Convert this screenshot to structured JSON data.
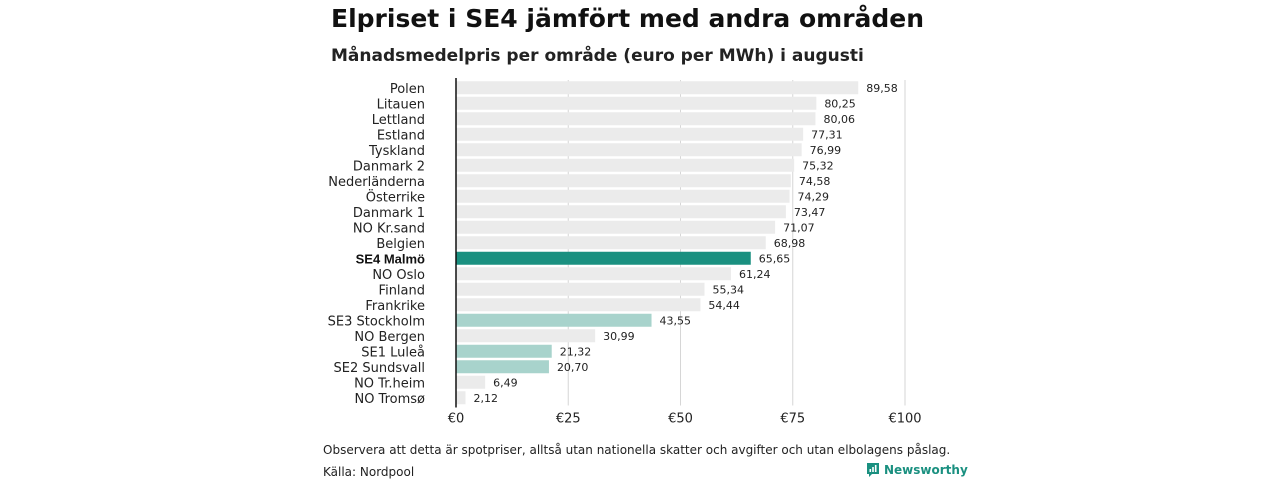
{
  "header": {
    "title": "Elpriset i SE4 jämfört med andra områden",
    "subtitle": "Månadsmedelpris per område (euro per MWh) i augusti"
  },
  "footer": {
    "note": "Observera att detta är spotpriser, alltså utan nationella skatter och avgifter och utan elbolagens påslag.",
    "source": "Källa: Nordpool",
    "logo_text": "Newsworthy"
  },
  "colors": {
    "default_bar": "#ebebeb",
    "highlight_bar": "#1a9080",
    "swedish_bar": "#a8d3cc",
    "axis_line": "#111111",
    "grid_line": "#d6d6d6"
  },
  "chart_data": {
    "type": "bar",
    "orientation": "horizontal",
    "categories": [
      "Polen",
      "Litauen",
      "Lettland",
      "Estland",
      "Tyskland",
      "Danmark  2",
      "Nederländerna",
      "Österrike",
      "Danmark  1",
      "NO Kr.sand",
      "Belgien",
      "SE4 Malmö",
      "NO Oslo",
      "Finland",
      "Frankrike",
      "SE3  Stockholm",
      "NO Bergen",
      "SE1  Luleå",
      "SE2  Sundsvall",
      "NO Tr.heim",
      "NO Tromsø"
    ],
    "values": [
      89.58,
      80.25,
      80.06,
      77.31,
      76.99,
      75.32,
      74.58,
      74.29,
      73.47,
      71.07,
      68.98,
      65.65,
      61.24,
      55.34,
      54.44,
      43.55,
      30.99,
      21.32,
      20.7,
      6.49,
      2.12
    ],
    "value_labels": [
      "89,58",
      "80,25",
      "80,06",
      "77,31",
      "76,99",
      "75,32",
      "74,58",
      "74,29",
      "73,47",
      "71,07",
      "68,98",
      "65,65",
      "61,24",
      "55,34",
      "54,44",
      "43,55",
      "30,99",
      "21,32",
      "20,70",
      "6,49",
      "2,12"
    ],
    "highlight": "SE4 Malmö",
    "swedish_areas": [
      "SE3  Stockholm",
      "SE1  Luleå",
      "SE2  Sundsvall"
    ],
    "xlim": [
      0,
      100
    ],
    "xticks": [
      0,
      25,
      50,
      75,
      100
    ],
    "xtick_labels": [
      "€0",
      "€25",
      "€50",
      "€75",
      "€100"
    ],
    "grid": true
  }
}
